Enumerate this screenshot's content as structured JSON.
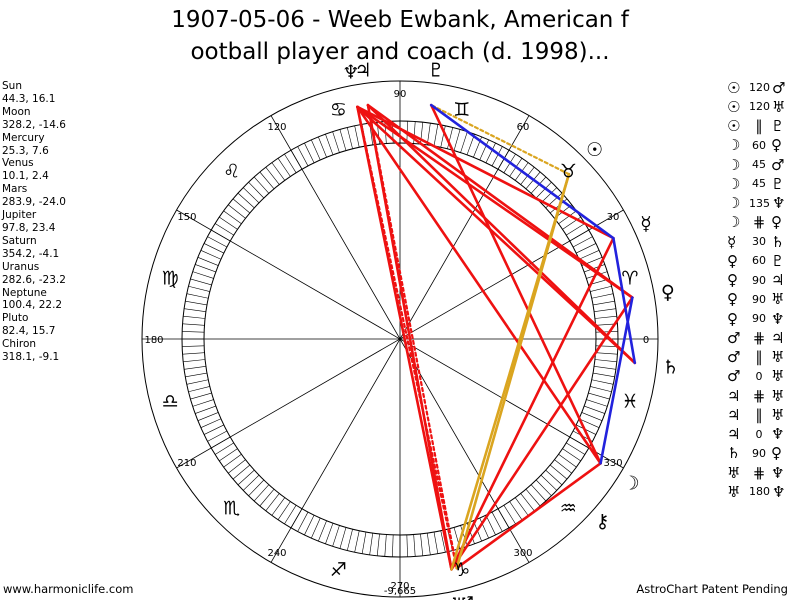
{
  "title_lines": [
    "1907-05-06 - Weeb Ewbank, American f",
    "ootball player and coach (d. 1998)..."
  ],
  "planet_positions": [
    {
      "name": "Sun",
      "values": "44.3, 16.1"
    },
    {
      "name": "Moon",
      "values": "328.2, -14.6"
    },
    {
      "name": "Mercury",
      "values": "25.3, 7.6"
    },
    {
      "name": "Venus",
      "values": "10.1, 2.4"
    },
    {
      "name": "Mars",
      "values": "283.9, -24.0"
    },
    {
      "name": "Jupiter",
      "values": "97.8, 23.4"
    },
    {
      "name": "Saturn",
      "values": "354.2, -4.1"
    },
    {
      "name": "Uranus",
      "values": "282.6, -23.2"
    },
    {
      "name": "Neptune",
      "values": "100.4, 22.2"
    },
    {
      "name": "Pluto",
      "values": "82.4, 15.7"
    },
    {
      "name": "Chiron",
      "values": "318.1, -9.1"
    }
  ],
  "aspects": [
    {
      "p1": "Sun",
      "g1": "☉",
      "aspect": "120",
      "p2": "Mars",
      "g2": "♂"
    },
    {
      "p1": "Sun",
      "g1": "☉",
      "aspect": "120",
      "p2": "Uranus",
      "g2": "♅"
    },
    {
      "p1": "Sun",
      "g1": "☉",
      "aspect": "∥",
      "p2": "Pluto",
      "g2": "♇"
    },
    {
      "p1": "Moon",
      "g1": "☽",
      "aspect": "60",
      "p2": "Venus",
      "g2": "♀"
    },
    {
      "p1": "Moon",
      "g1": "☽",
      "aspect": "45",
      "p2": "Mars",
      "g2": "♂"
    },
    {
      "p1": "Moon",
      "g1": "☽",
      "aspect": "45",
      "p2": "Pluto",
      "g2": "♇"
    },
    {
      "p1": "Moon",
      "g1": "☽",
      "aspect": "135",
      "p2": "Neptune",
      "g2": "♆"
    },
    {
      "p1": "Moon",
      "g1": "☽",
      "aspect": "⋕",
      "p2": "Venus",
      "g2": "♀"
    },
    {
      "p1": "Mercury",
      "g1": "☿",
      "aspect": "30",
      "p2": "Saturn",
      "g2": "♄"
    },
    {
      "p1": "Venus",
      "g1": "♀",
      "aspect": "60",
      "p2": "Pluto",
      "g2": "♇"
    },
    {
      "p1": "Venus",
      "g1": "♀",
      "aspect": "90",
      "p2": "Jupiter",
      "g2": "♃"
    },
    {
      "p1": "Venus",
      "g1": "♀",
      "aspect": "90",
      "p2": "Uranus",
      "g2": "♅"
    },
    {
      "p1": "Venus",
      "g1": "♀",
      "aspect": "90",
      "p2": "Neptune",
      "g2": "♆"
    },
    {
      "p1": "Mars",
      "g1": "♂",
      "aspect": "⋕",
      "p2": "Jupiter",
      "g2": "♃"
    },
    {
      "p1": "Mars",
      "g1": "♂",
      "aspect": "∥",
      "p2": "Uranus",
      "g2": "♅"
    },
    {
      "p1": "Mars",
      "g1": "♂",
      "aspect": "0",
      "p2": "Uranus",
      "g2": "♅"
    },
    {
      "p1": "Jupiter",
      "g1": "♃",
      "aspect": "⋕",
      "p2": "Uranus",
      "g2": "♅"
    },
    {
      "p1": "Jupiter",
      "g1": "♃",
      "aspect": "∥",
      "p2": "Uranus",
      "g2": "♅"
    },
    {
      "p1": "Jupiter",
      "g1": "♃",
      "aspect": "0",
      "p2": "Neptune",
      "g2": "♆"
    },
    {
      "p1": "Saturn",
      "g1": "♄",
      "aspect": "90",
      "p2": "Venus",
      "g2": "♀"
    },
    {
      "p1": "Uranus",
      "g1": "♅",
      "aspect": "⋕",
      "p2": "Neptune",
      "g2": "♆"
    },
    {
      "p1": "Uranus",
      "g1": "♅",
      "aspect": "180",
      "p2": "Neptune",
      "g2": "♆"
    }
  ],
  "wheel": {
    "degree_labels": [
      "0",
      "30",
      "60",
      "90",
      "120",
      "150",
      "180",
      "210",
      "240",
      "270",
      "300",
      "330"
    ],
    "center_label": "-9,665",
    "signs": [
      {
        "name": "aries",
        "glyph": "♈"
      },
      {
        "name": "taurus",
        "glyph": "♉"
      },
      {
        "name": "gemini",
        "glyph": "♊"
      },
      {
        "name": "cancer",
        "glyph": "♋"
      },
      {
        "name": "leo",
        "glyph": "♌"
      },
      {
        "name": "virgo",
        "glyph": "♍"
      },
      {
        "name": "libra",
        "glyph": "♎"
      },
      {
        "name": "scorpio",
        "glyph": "♏"
      },
      {
        "name": "sagittarius",
        "glyph": "♐"
      },
      {
        "name": "capricorn",
        "glyph": "♑"
      },
      {
        "name": "aquarius",
        "glyph": "♒"
      },
      {
        "name": "pisces",
        "glyph": "♓"
      }
    ],
    "planets": [
      {
        "name": "Sun",
        "glyph": "☉",
        "lon": 44.3
      },
      {
        "name": "Moon",
        "glyph": "☽",
        "lon": 328.2
      },
      {
        "name": "Mercury",
        "glyph": "☿",
        "lon": 25.3
      },
      {
        "name": "Venus",
        "glyph": "♀",
        "lon": 10.1
      },
      {
        "name": "Mars",
        "glyph": "♂",
        "lon": 283.9
      },
      {
        "name": "Jupiter",
        "glyph": "♃",
        "lon": 97.8
      },
      {
        "name": "Saturn",
        "glyph": "♄",
        "lon": 354.2
      },
      {
        "name": "Uranus",
        "glyph": "♅",
        "lon": 282.6
      },
      {
        "name": "Neptune",
        "glyph": "♆",
        "lon": 100.4
      },
      {
        "name": "Pluto",
        "glyph": "♇",
        "lon": 82.4
      },
      {
        "name": "Chiron",
        "glyph": "⚷",
        "lon": 318.1
      }
    ],
    "aspect_lines": [
      {
        "a": 10.1,
        "b": 97.8,
        "color": "#ee1111",
        "style": "solid"
      },
      {
        "a": 10.1,
        "b": 100.4,
        "color": "#ee1111",
        "style": "solid"
      },
      {
        "a": 10.1,
        "b": 282.6,
        "color": "#ee1111",
        "style": "solid"
      },
      {
        "a": 354.2,
        "b": 97.8,
        "color": "#ee1111",
        "style": "solid"
      },
      {
        "a": 354.2,
        "b": 100.4,
        "color": "#ee1111",
        "style": "solid"
      },
      {
        "a": 25.3,
        "b": 100.4,
        "color": "#ee1111",
        "style": "solid"
      },
      {
        "a": 97.8,
        "b": 283.9,
        "color": "#ee1111",
        "style": "dotted"
      },
      {
        "a": 100.4,
        "b": 283.9,
        "color": "#ee1111",
        "style": "dotted"
      },
      {
        "a": 97.8,
        "b": 282.6,
        "color": "#ee1111",
        "style": "solid"
      },
      {
        "a": 100.4,
        "b": 282.6,
        "color": "#ee1111",
        "style": "solid"
      },
      {
        "a": 82.4,
        "b": 328.2,
        "color": "#ee1111",
        "style": "solid"
      },
      {
        "a": 328.2,
        "b": 283.9,
        "color": "#ee1111",
        "style": "solid"
      },
      {
        "a": 100.4,
        "b": 328.2,
        "color": "#ee1111",
        "style": "solid"
      },
      {
        "a": 25.3,
        "b": 282.6,
        "color": "#ee1111",
        "style": "solid"
      },
      {
        "a": 25.3,
        "b": 354.2,
        "color": "#2222dd",
        "style": "solid"
      },
      {
        "a": 44.3,
        "b": 82.4,
        "color": "#daa520",
        "style": "dotted"
      },
      {
        "a": 82.4,
        "b": 25.3,
        "color": "#2222dd",
        "style": "solid"
      },
      {
        "a": 10.1,
        "b": 328.2,
        "color": "#2222dd",
        "style": "solid"
      },
      {
        "a": 44.3,
        "b": 282.6,
        "color": "#daa520",
        "style": "solid"
      },
      {
        "a": 44.3,
        "b": 283.9,
        "color": "#daa520",
        "style": "solid"
      }
    ]
  },
  "footer_left": "www.harmoniclife.com",
  "footer_right": "AstroChart Patent Pending"
}
